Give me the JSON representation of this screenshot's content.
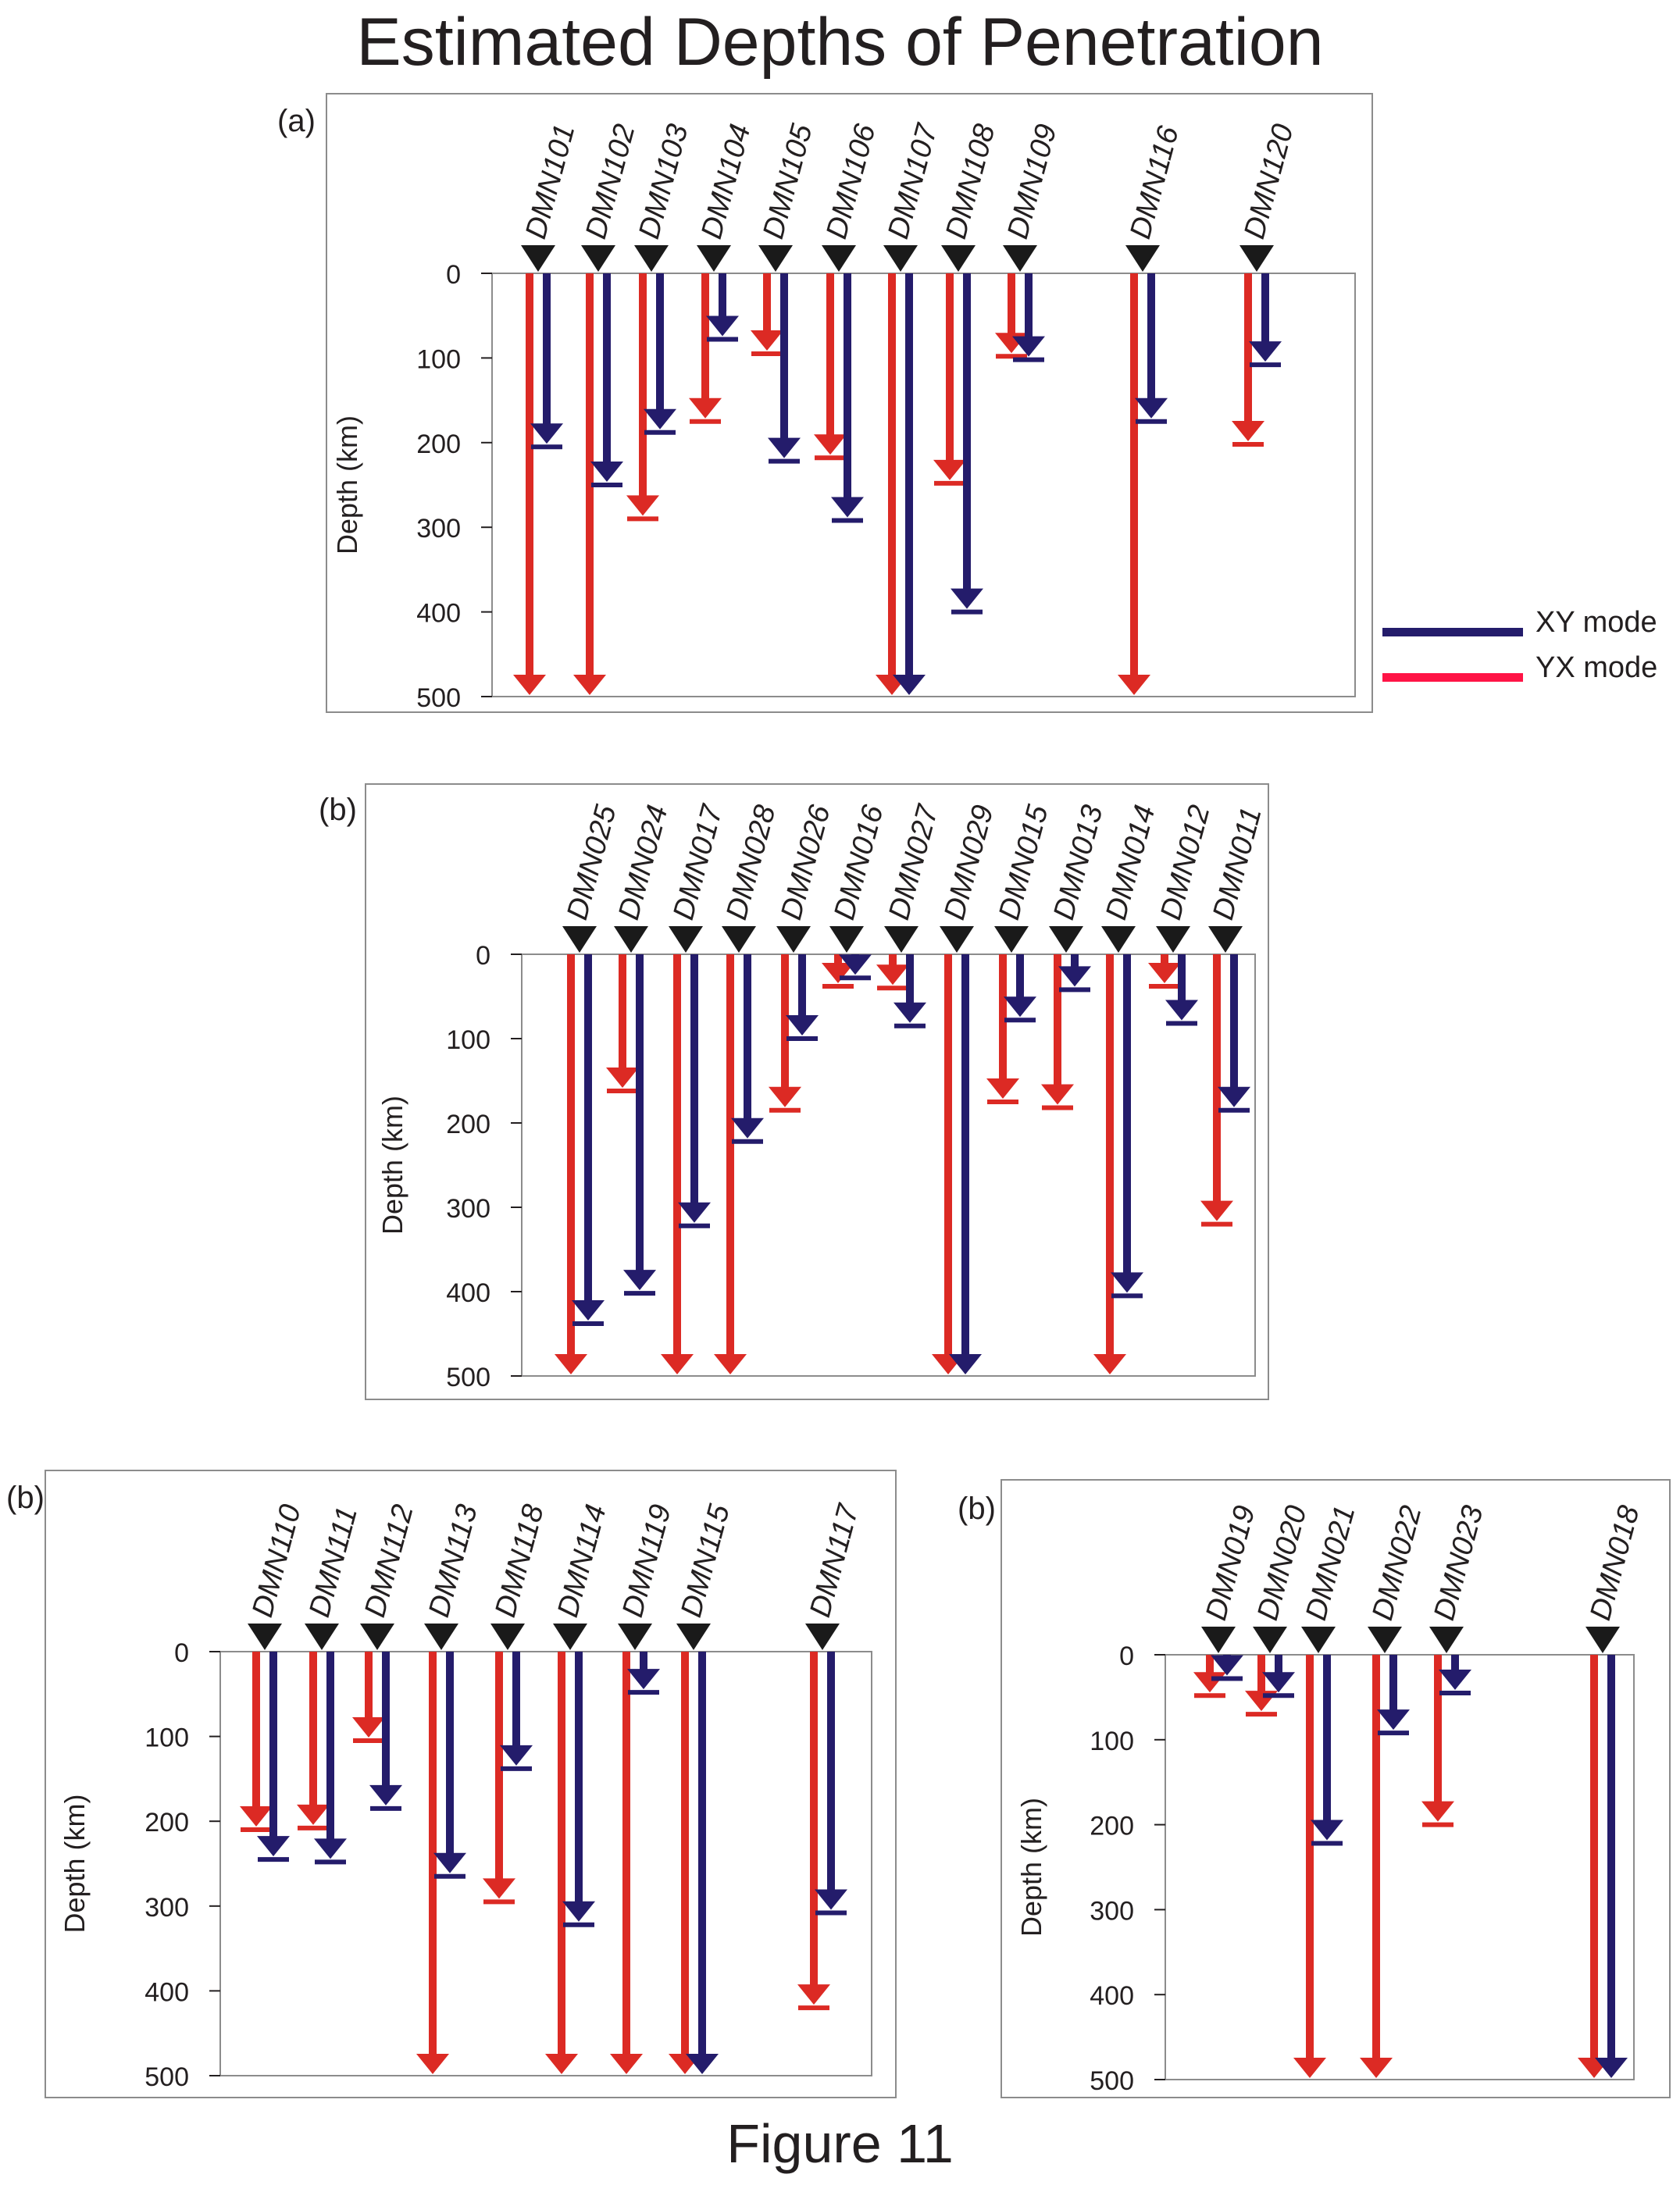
{
  "title": "Estimated Depths of Penetration",
  "figure_caption": "Figure 11",
  "colors": {
    "xy": "#241c6b",
    "yx": "#dc2a24",
    "station": "#1a1a1a",
    "frame": "#8c8c8c",
    "text": "#231f20"
  },
  "legend": {
    "xy_label": "XY mode",
    "yx_label": "YX mode",
    "xy_color": "#241c6b",
    "yx_color": "#ff1446"
  },
  "chart_data": [
    {
      "type": "bar",
      "panel_label": "(a)",
      "ylabel": "Depth (km)",
      "y_ticks": [
        0,
        100,
        200,
        300,
        400,
        500
      ],
      "ylim": [
        0,
        500
      ],
      "stations": [
        {
          "name": "DMN101",
          "yx": 500,
          "xy": 205
        },
        {
          "name": "DMN102",
          "yx": 500,
          "xy": 250
        },
        {
          "name": "DMN103",
          "yx": 290,
          "xy": 188
        },
        {
          "name": "DMN104",
          "yx": 175,
          "xy": 78
        },
        {
          "name": "DMN105",
          "yx": 95,
          "xy": 222
        },
        {
          "name": "DMN106",
          "yx": 218,
          "xy": 292
        },
        {
          "name": "DMN107",
          "yx": 500,
          "xy": 500
        },
        {
          "name": "DMN108",
          "yx": 248,
          "xy": 400
        },
        {
          "name": "DMN109",
          "yx": 98,
          "xy": 102
        },
        {
          "name": "DMN116",
          "yx": 500,
          "xy": 175
        },
        {
          "name": "DMN120",
          "yx": 202,
          "xy": 108
        }
      ]
    },
    {
      "type": "bar",
      "panel_label": "(b)",
      "ylabel": "Depth (km)",
      "y_ticks": [
        0,
        100,
        200,
        300,
        400,
        500
      ],
      "ylim": [
        0,
        500
      ],
      "stations": [
        {
          "name": "DMN025",
          "yx": 500,
          "xy": 438
        },
        {
          "name": "DMN024",
          "yx": 162,
          "xy": 402
        },
        {
          "name": "DMN017",
          "yx": 500,
          "xy": 322
        },
        {
          "name": "DMN028",
          "yx": 500,
          "xy": 222
        },
        {
          "name": "DMN026",
          "yx": 185,
          "xy": 100
        },
        {
          "name": "DMN016",
          "yx": 38,
          "xy": 28
        },
        {
          "name": "DMN027",
          "yx": 40,
          "xy": 85
        },
        {
          "name": "DMN029",
          "yx": 500,
          "xy": 500
        },
        {
          "name": "DMN015",
          "yx": 175,
          "xy": 78
        },
        {
          "name": "DMN013",
          "yx": 182,
          "xy": 42
        },
        {
          "name": "DMN014",
          "yx": 500,
          "xy": 405
        },
        {
          "name": "DMN012",
          "yx": 38,
          "xy": 82
        },
        {
          "name": "DMN011",
          "yx": 320,
          "xy": 185
        }
      ]
    },
    {
      "type": "bar",
      "panel_label": "(b)",
      "ylabel": "Depth (km)",
      "y_ticks": [
        0,
        100,
        200,
        300,
        400,
        500
      ],
      "ylim": [
        0,
        500
      ],
      "stations": [
        {
          "name": "DMN110",
          "yx": 210,
          "xy": 245
        },
        {
          "name": "DMN111",
          "yx": 208,
          "xy": 248
        },
        {
          "name": "DMN112",
          "yx": 105,
          "xy": 185
        },
        {
          "name": "DMN113",
          "yx": 500,
          "xy": 265
        },
        {
          "name": "DMN118",
          "yx": 295,
          "xy": 138
        },
        {
          "name": "DMN114",
          "yx": 500,
          "xy": 322
        },
        {
          "name": "DMN119",
          "yx": 500,
          "xy": 48
        },
        {
          "name": "DMN115",
          "yx": 500,
          "xy": 500
        },
        {
          "name": "DMN117",
          "yx": 420,
          "xy": 308
        }
      ]
    },
    {
      "type": "bar",
      "panel_label": "(b)",
      "ylabel": "Depth (km)",
      "y_ticks": [
        0,
        100,
        200,
        300,
        400,
        500
      ],
      "ylim": [
        0,
        500
      ],
      "stations": [
        {
          "name": "DMN019",
          "yx": 48,
          "xy": 28
        },
        {
          "name": "DMN020",
          "yx": 70,
          "xy": 48
        },
        {
          "name": "DMN021",
          "yx": 500,
          "xy": 222
        },
        {
          "name": "DMN022",
          "yx": 500,
          "xy": 92
        },
        {
          "name": "DMN023",
          "yx": 200,
          "xy": 45
        },
        {
          "name": "DMN018",
          "yx": 500,
          "xy": 500
        }
      ]
    }
  ]
}
